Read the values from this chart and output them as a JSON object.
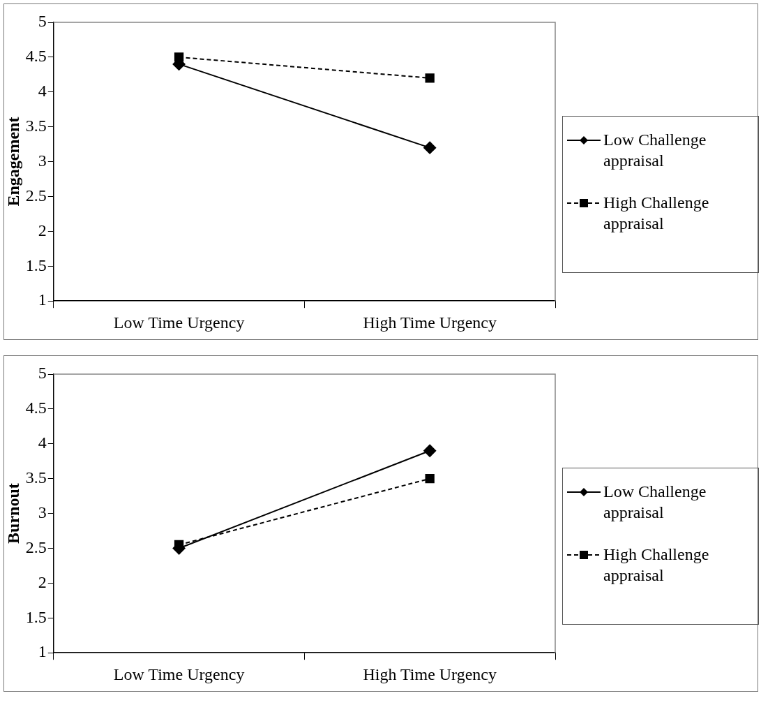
{
  "chart_data": [
    {
      "type": "line",
      "ylabel": "Engagement",
      "categories": [
        "Low Time Urgency",
        "High Time Urgency"
      ],
      "ylim": [
        1,
        5
      ],
      "yticks": [
        1,
        1.5,
        2,
        2.5,
        3,
        3.5,
        4,
        4.5,
        5
      ],
      "grid": false,
      "legend": "right",
      "series": [
        {
          "name": "Low Challenge appraisal",
          "color": "#000000",
          "marker": "diamond",
          "line_style": "solid",
          "values": [
            4.4,
            3.2
          ]
        },
        {
          "name": "High Challenge appraisal",
          "color": "#000000",
          "marker": "square",
          "line_style": "dashed",
          "values": [
            4.5,
            4.2
          ]
        }
      ]
    },
    {
      "type": "line",
      "ylabel": "Burnout",
      "categories": [
        "Low Time Urgency",
        "High Time Urgency"
      ],
      "ylim": [
        1,
        5
      ],
      "yticks": [
        1,
        1.5,
        2,
        2.5,
        3,
        3.5,
        4,
        4.5,
        5
      ],
      "grid": false,
      "legend": "right",
      "series": [
        {
          "name": "Low Challenge appraisal",
          "color": "#000000",
          "marker": "diamond",
          "line_style": "solid",
          "values": [
            2.5,
            3.9
          ]
        },
        {
          "name": "High Challenge appraisal",
          "color": "#000000",
          "marker": "square",
          "line_style": "dashed",
          "values": [
            2.55,
            3.5
          ]
        }
      ]
    }
  ]
}
